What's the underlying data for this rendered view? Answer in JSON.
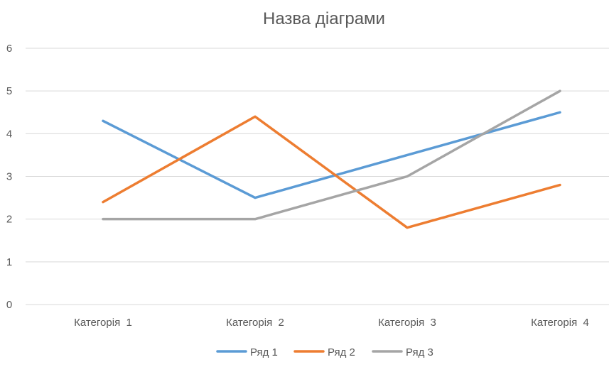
{
  "chart_data": {
    "type": "line",
    "title": "Назва діаграми",
    "xlabel": "",
    "ylabel": "",
    "categories": [
      "Категорія  1",
      "Категорія  2",
      "Категорія  3",
      "Категорія  4"
    ],
    "ylim": [
      0,
      6
    ],
    "yticks": [
      "0",
      "1",
      "2",
      "3",
      "4",
      "5",
      "6"
    ],
    "grid": true,
    "legend": "bottom",
    "series": [
      {
        "name": "Ряд 1",
        "values": [
          4.3,
          2.5,
          3.5,
          4.5
        ],
        "color": "#5b9bd5"
      },
      {
        "name": "Ряд 2",
        "values": [
          2.4,
          4.4,
          1.8,
          2.8
        ],
        "color": "#ed7d31"
      },
      {
        "name": "Ряд 3",
        "values": [
          2,
          2,
          3,
          5
        ],
        "color": "#a5a5a5"
      }
    ]
  }
}
